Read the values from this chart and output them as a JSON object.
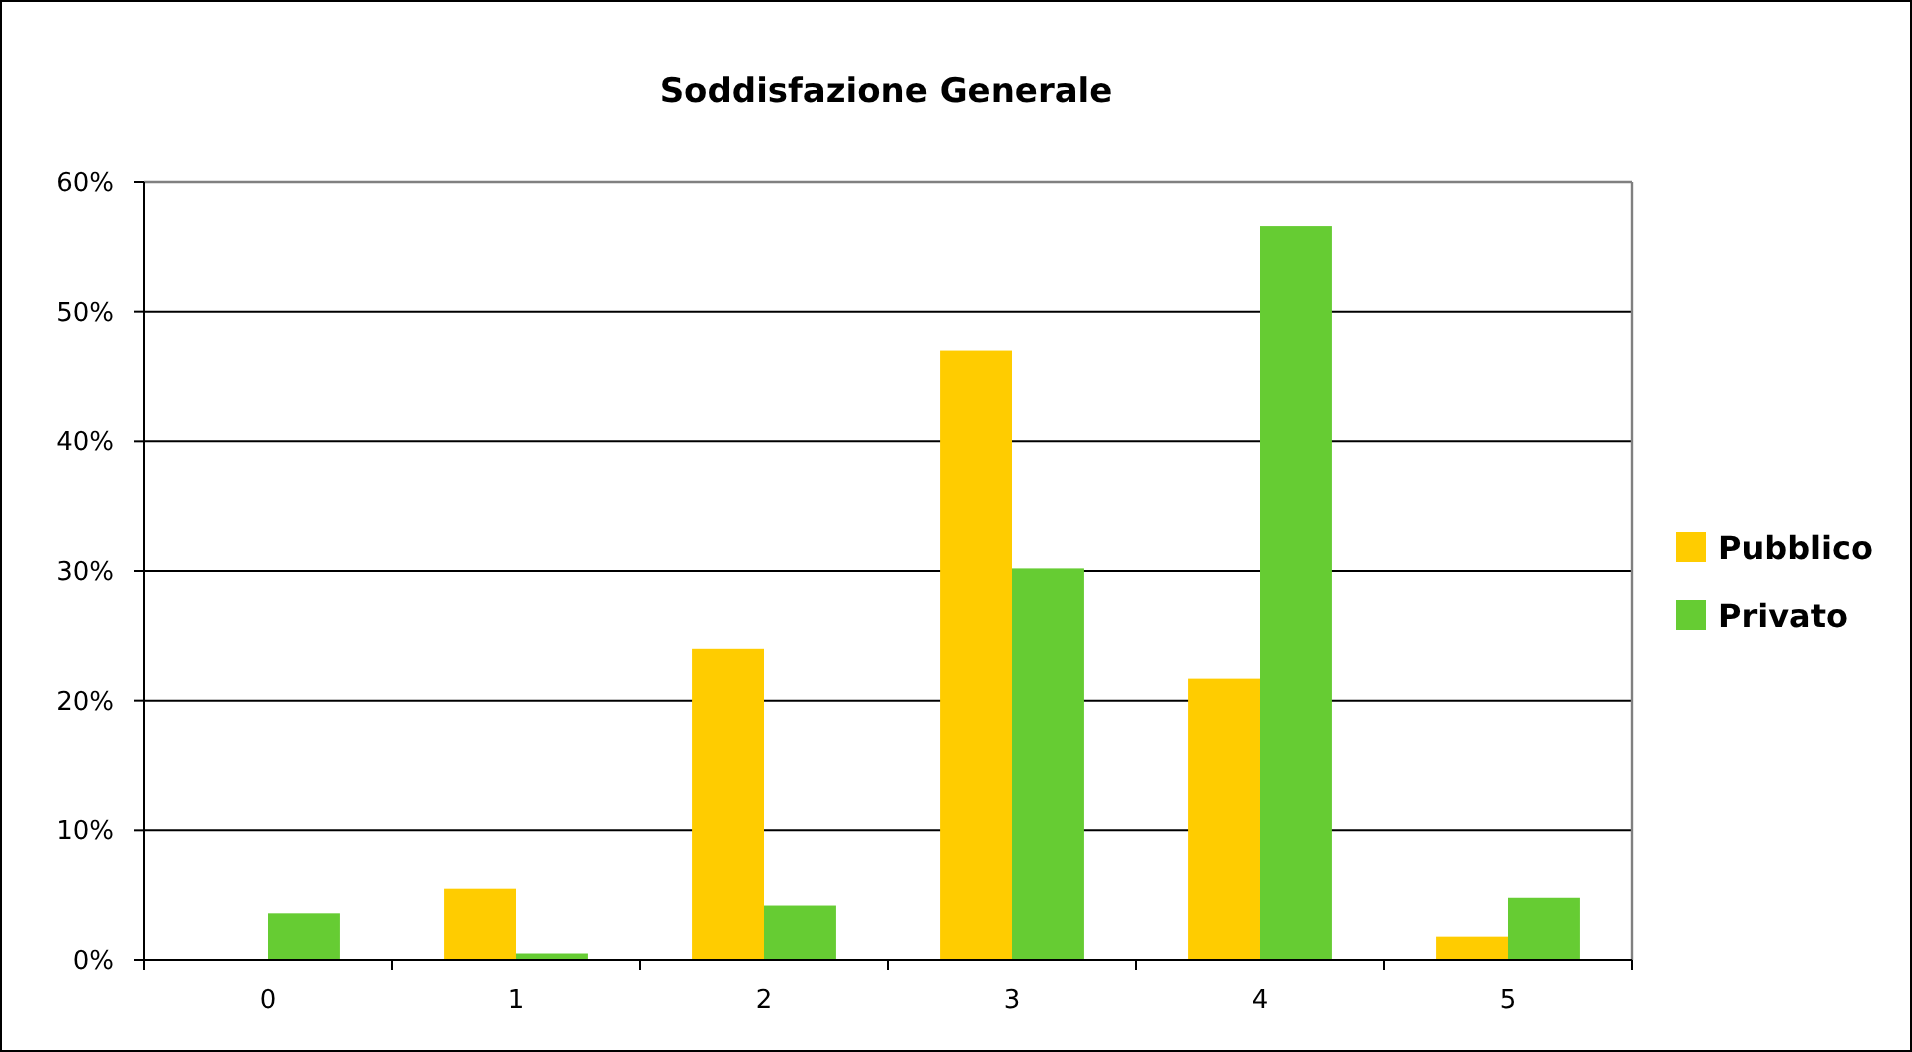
{
  "chart_data": {
    "type": "bar",
    "title": "Soddisfazione Generale",
    "categories": [
      "0",
      "1",
      "2",
      "3",
      "4",
      "5"
    ],
    "series": [
      {
        "name": "Pubblico",
        "color": "#ffcc00",
        "values": [
          0,
          5.5,
          24.0,
          47.0,
          21.7,
          1.8
        ]
      },
      {
        "name": "Privato",
        "color": "#66cc33",
        "values": [
          3.6,
          0.5,
          4.2,
          30.2,
          56.6,
          4.8
        ]
      }
    ],
    "ylim": [
      0,
      60
    ],
    "yticks": [
      {
        "value": 0,
        "label": "0%"
      },
      {
        "value": 10,
        "label": "10%"
      },
      {
        "value": 20,
        "label": "20%"
      },
      {
        "value": 30,
        "label": "30%"
      },
      {
        "value": 40,
        "label": "40%"
      },
      {
        "value": 50,
        "label": "50%"
      },
      {
        "value": 60,
        "label": "60%"
      }
    ],
    "grid": "y",
    "legend": "right"
  }
}
